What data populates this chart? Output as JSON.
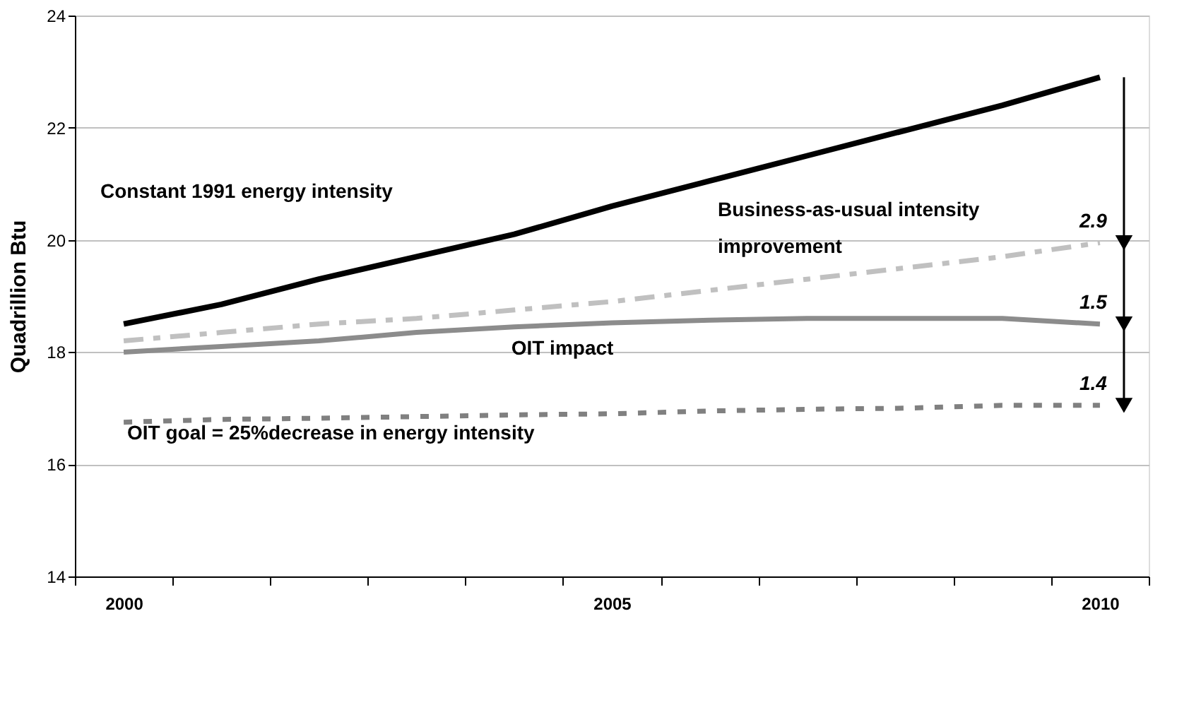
{
  "chart_data": {
    "type": "line",
    "ylabel": "Quadrillion Btu",
    "categories": [
      "2000",
      null,
      null,
      null,
      null,
      "2005",
      null,
      null,
      null,
      null,
      "2010"
    ],
    "series": [
      {
        "name": "Constant 1991 energy intensity",
        "color": "#000000",
        "line_style": "solid",
        "values": [
          18.5,
          18.85,
          19.3,
          19.7,
          20.1,
          20.6,
          21.05,
          21.5,
          21.95,
          22.4,
          22.9
        ]
      },
      {
        "name": "Business-as-usual intensity\nimprovement",
        "color": "#c0c0c0",
        "line_style": "dashed",
        "values": [
          18.2,
          18.35,
          18.5,
          18.6,
          18.75,
          18.9,
          19.1,
          19.3,
          19.5,
          19.7,
          19.95
        ]
      },
      {
        "name": "OIT impact",
        "color": "#8c8c8c",
        "line_style": "solid",
        "values": [
          18.0,
          18.1,
          18.2,
          18.35,
          18.45,
          18.52,
          18.57,
          18.6,
          18.6,
          18.6,
          18.5
        ]
      },
      {
        "name": "OIT goal = 25%decrease in energy intensity",
        "color": "#808080",
        "line_style": "dotted",
        "values": [
          16.75,
          16.8,
          16.82,
          16.85,
          16.88,
          16.9,
          16.95,
          16.98,
          17.0,
          17.05,
          17.05
        ]
      }
    ],
    "ylim": [
      14,
      24
    ],
    "yticks": [
      14,
      16,
      18,
      20,
      22,
      24
    ],
    "grid": "y",
    "marker": "none",
    "annotations": [
      "2.9",
      "1.5",
      "1.4"
    ]
  }
}
